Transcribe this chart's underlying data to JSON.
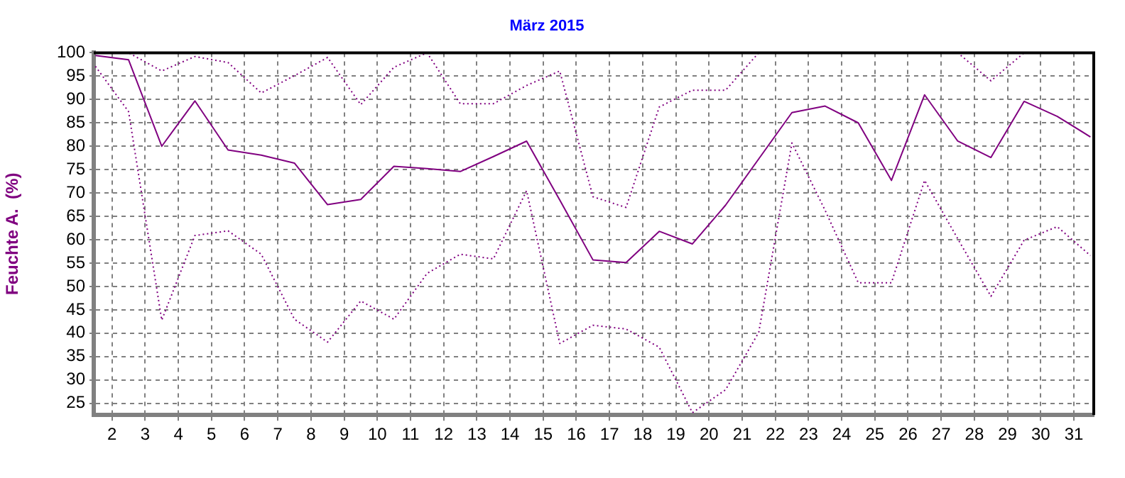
{
  "chart_data": {
    "type": "line",
    "title": "März 2015",
    "ylabel": "Feuchte A.  (%)",
    "x": [
      1.5,
      2.5,
      3.5,
      4.5,
      5.5,
      6.5,
      7.5,
      8.5,
      9.5,
      10.5,
      11.5,
      12.5,
      13.5,
      14.5,
      15.5,
      16.5,
      17.5,
      18.5,
      19.5,
      20.5,
      21.5,
      22.5,
      23.5,
      24.5,
      25.5,
      26.5,
      27.5,
      28.5,
      29.5,
      30.5,
      31.5
    ],
    "series": [
      {
        "color": "#800080",
        "line_style": "solid",
        "values": [
          99.4,
          98.5,
          80,
          89.7,
          79.2,
          78.1,
          76.4,
          67.5,
          68.6,
          75.7,
          75.2,
          74.6,
          77.8,
          81.1,
          68.5,
          55.7,
          55.1,
          61.8,
          59.1,
          67.4,
          77.3,
          87.2,
          88.6,
          85,
          72.7,
          91,
          81.1,
          77.6,
          89.6,
          86.4,
          82
        ]
      },
      {
        "color": "#800080",
        "line_style": "dotted",
        "values": [
          100,
          100,
          96.1,
          99.2,
          97.9,
          91.4,
          95.1,
          99,
          88.9,
          96.9,
          100,
          89.1,
          89.1,
          93,
          96.1,
          69.2,
          66.9,
          88.4,
          92,
          92,
          100,
          100,
          100,
          100,
          100,
          100,
          100,
          94,
          100,
          100,
          100
        ]
      },
      {
        "color": "#800080",
        "line_style": "dotted",
        "values": [
          97.1,
          87.4,
          42.8,
          60.9,
          61.9,
          56.9,
          43,
          38.1,
          46.9,
          43,
          52.8,
          56.9,
          55.9,
          70.5,
          37.8,
          41.7,
          40.9,
          37,
          23,
          27.9,
          40.2,
          80.7,
          66.3,
          50.8,
          50.8,
          72.7,
          60.2,
          47.9,
          59.9,
          62.8,
          56.6
        ]
      }
    ],
    "xlim": [
      1.45,
      31.6
    ],
    "xticks": [
      2,
      3,
      4,
      5,
      6,
      7,
      8,
      9,
      10,
      11,
      12,
      13,
      14,
      15,
      16,
      17,
      18,
      19,
      20,
      21,
      22,
      23,
      24,
      25,
      26,
      27,
      28,
      29,
      30,
      31
    ],
    "ylim": [
      22.5,
      100
    ],
    "yticks": [
      25,
      30,
      35,
      40,
      45,
      50,
      55,
      60,
      65,
      70,
      75,
      80,
      85,
      90,
      95,
      100
    ],
    "grid": true,
    "legend": false,
    "marker": "none"
  }
}
